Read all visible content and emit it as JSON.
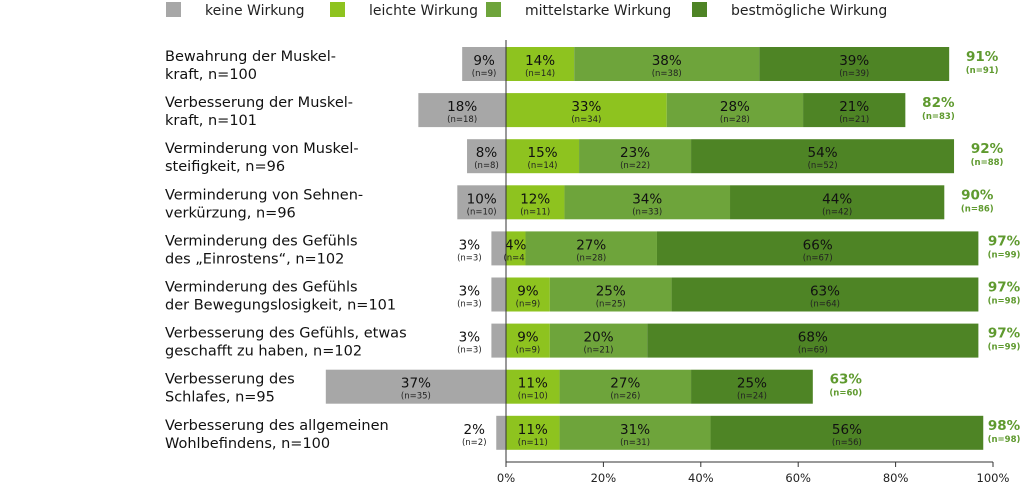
{
  "chart_data": {
    "type": "bar",
    "orientation": "horizontal",
    "stacked": true,
    "legend": [
      {
        "name": "keine Wirkung",
        "color": "#a7a7a7"
      },
      {
        "name": "leichte Wirkung",
        "color": "#8ec31f"
      },
      {
        "name": "mittelstarke Wirkung",
        "color": "#6ea43b"
      },
      {
        "name": "bestmögliche Wirkung",
        "color": "#4e8425"
      }
    ],
    "legend_position": "top",
    "xlim": [
      0,
      100
    ],
    "xticks": [
      "0%",
      "20%",
      "40%",
      "60%",
      "80%",
      "100%"
    ],
    "grid": false,
    "total_color": "#5f9a2f",
    "categories": [
      {
        "label": [
          "Bewahrung der Muskel-",
          "kraft, n=100"
        ],
        "none": 9,
        "none_n": "(n=9)",
        "values": [
          14,
          38,
          39
        ],
        "ns": [
          "(n=14)",
          "(n=38)",
          "(n=39)"
        ],
        "total": "91%",
        "total_n": "(n=91)"
      },
      {
        "label": [
          "Verbesserung der Muskel-",
          "kraft, n=101"
        ],
        "none": 18,
        "none_n": "(n=18)",
        "values": [
          33,
          28,
          21
        ],
        "ns": [
          "(n=34)",
          "(n=28)",
          "(n=21)"
        ],
        "total": "82%",
        "total_n": "(n=83)"
      },
      {
        "label": [
          "Verminderung von Muskel-",
          "steifigkeit, n=96"
        ],
        "none": 8,
        "none_n": "(n=8)",
        "values": [
          15,
          23,
          54
        ],
        "ns": [
          "(n=14)",
          "(n=22)",
          "(n=52)"
        ],
        "total": "92%",
        "total_n": "(n=88)"
      },
      {
        "label": [
          "Verminderung von Sehnen-",
          "verkürzung, n=96"
        ],
        "none": 10,
        "none_n": "(n=10)",
        "values": [
          12,
          34,
          44
        ],
        "ns": [
          "(n=11)",
          "(n=33)",
          "(n=42)"
        ],
        "total": "90%",
        "total_n": "(n=86)"
      },
      {
        "label": [
          "Verminderung des Gefühls",
          "des „Einrostens“, n=102"
        ],
        "none": 3,
        "none_n": "(n=3)",
        "values": [
          4,
          27,
          66
        ],
        "ns": [
          "(n=4)",
          "(n=28)",
          "(n=67)"
        ],
        "total": "97%",
        "total_n": "(n=99)"
      },
      {
        "label": [
          "Verminderung des Gefühls",
          "der Bewegungslosigkeit, n=101"
        ],
        "none": 3,
        "none_n": "(n=3)",
        "values": [
          9,
          25,
          63
        ],
        "ns": [
          "(n=9)",
          "(n=25)",
          "(n=64)"
        ],
        "total": "97%",
        "total_n": "(n=98)"
      },
      {
        "label": [
          "Verbesserung des Gefühls, etwas",
          "geschafft zu haben, n=102"
        ],
        "none": 3,
        "none_n": "(n=3)",
        "values": [
          9,
          20,
          68
        ],
        "ns": [
          "(n=9)",
          "(n=21)",
          "(n=69)"
        ],
        "total": "97%",
        "total_n": "(n=99)"
      },
      {
        "label": [
          "Verbesserung des",
          "Schlafes, n=95"
        ],
        "none": 37,
        "none_n": "(n=35)",
        "values": [
          11,
          27,
          25
        ],
        "ns": [
          "(n=10)",
          "(n=26)",
          "(n=24)"
        ],
        "total": "63%",
        "total_n": "(n=60)"
      },
      {
        "label": [
          "Verbesserung des allgemeinen",
          "Wohlbefindens, n=100"
        ],
        "none": 2,
        "none_n": "(n=2)",
        "values": [
          11,
          31,
          56
        ],
        "ns": [
          "(n=11)",
          "(n=31)",
          "(n=56)"
        ],
        "total": "98%",
        "total_n": "(n=98)"
      }
    ]
  }
}
